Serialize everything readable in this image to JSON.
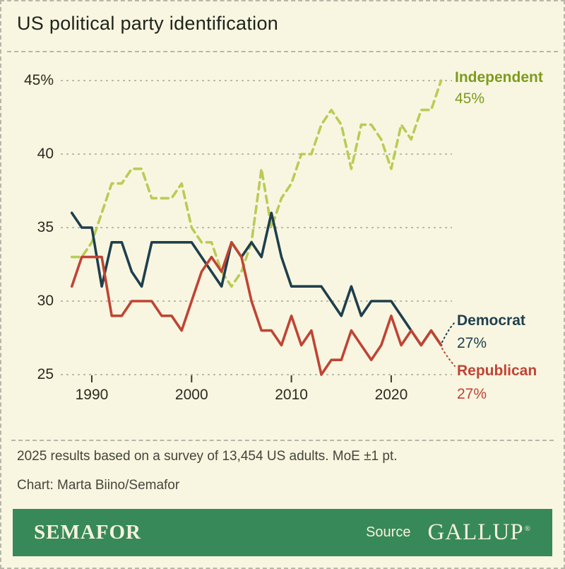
{
  "title": "US political party identification",
  "footer": {
    "note": "2025 results based on a survey of 13,454 US adults. MoE ±1 pt.",
    "credit": "Chart: Marta Biino/Semafor"
  },
  "brand_bar": {
    "brand": "SEMAFOR",
    "source_label": "Source",
    "source_name": "GALLUP",
    "registered_mark": "®",
    "bg_color": "#38895a",
    "text_color": "#f6f2da"
  },
  "colors": {
    "background": "#f8f6e1",
    "gridline": "#a8a89a",
    "independent_line": "#b9cc55",
    "independent_label": "#7d9b1e",
    "democrat": "#1f3f4d",
    "republican": "#c04434"
  },
  "chart_data": {
    "type": "line",
    "title": "US political party identification",
    "grid": "horizontal-dashed",
    "xlim": [
      1987,
      2026
    ],
    "ylim": [
      24,
      46.5
    ],
    "x": [
      1988,
      1989,
      1990,
      1991,
      1992,
      1993,
      1994,
      1995,
      1996,
      1997,
      1998,
      1999,
      2000,
      2001,
      2002,
      2003,
      2004,
      2005,
      2006,
      2007,
      2008,
      2009,
      2010,
      2011,
      2012,
      2013,
      2014,
      2015,
      2016,
      2017,
      2018,
      2019,
      2020,
      2021,
      2022,
      2023,
      2024,
      2025
    ],
    "x_tick_values": [
      1990,
      2000,
      2010,
      2020
    ],
    "x_tick_labels": [
      "1990",
      "2000",
      "2010",
      "2020"
    ],
    "y_tick_values": [
      45,
      40,
      35,
      30,
      25
    ],
    "y_tick_labels": [
      "45%",
      "40",
      "35",
      "30",
      "25"
    ],
    "series": [
      {
        "name": "Independent",
        "style": "dashed",
        "color": "#b9cc55",
        "label_color": "#7d9b1e",
        "end_label": "Independent",
        "end_value_label": "45%",
        "values": [
          33,
          33,
          34,
          36,
          38,
          38,
          39,
          39,
          37,
          37,
          37,
          38,
          35,
          34,
          34,
          32,
          31,
          32,
          34,
          39,
          35,
          37,
          38,
          40,
          40,
          42,
          43,
          42,
          39,
          42,
          42,
          41,
          39,
          42,
          41,
          43,
          43,
          45
        ]
      },
      {
        "name": "Democrat",
        "style": "solid",
        "color": "#1f3f4d",
        "label_color": "#1f3f4d",
        "end_label": "Democrat",
        "end_value_label": "27%",
        "values": [
          36,
          35,
          35,
          31,
          34,
          34,
          32,
          31,
          34,
          34,
          34,
          34,
          34,
          33,
          32,
          31,
          34,
          33,
          34,
          33,
          36,
          33,
          31,
          31,
          31,
          31,
          30,
          29,
          31,
          29,
          30,
          30,
          30,
          29,
          28,
          27,
          28,
          27
        ]
      },
      {
        "name": "Republican",
        "style": "solid",
        "color": "#c04434",
        "label_color": "#c04434",
        "end_label": "Republican",
        "end_value_label": "27%",
        "values": [
          31,
          33,
          33,
          33,
          29,
          29,
          30,
          30,
          30,
          29,
          29,
          28,
          30,
          32,
          33,
          32,
          34,
          33,
          30,
          28,
          28,
          27,
          29,
          27,
          28,
          25,
          26,
          26,
          28,
          27,
          26,
          27,
          29,
          27,
          28,
          27,
          28,
          27
        ]
      }
    ]
  }
}
